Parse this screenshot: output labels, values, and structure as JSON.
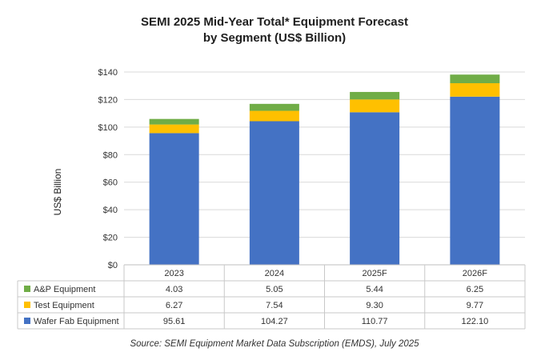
{
  "chart_data": {
    "type": "bar",
    "stacked": true,
    "title": "SEMI 2025 Mid-Year Total* Equipment Forecast",
    "subtitle": "by Segment (US$ Billion)",
    "ylabel": "US$ Billion",
    "xlabel": "",
    "categories": [
      "2023",
      "2024",
      "2025F",
      "2026F"
    ],
    "ylim": [
      0,
      140
    ],
    "yticks": [
      "$0",
      "$20",
      "$40",
      "$60",
      "$80",
      "$100",
      "$120",
      "$140"
    ],
    "ytick_values": [
      0,
      20,
      40,
      60,
      80,
      100,
      120,
      140
    ],
    "grid": true,
    "series": [
      {
        "name": "Wafer Fab Equipment",
        "values": [
          95.61,
          104.27,
          110.77,
          122.1
        ],
        "labels": [
          "95.61",
          "104.27",
          "110.77",
          "122.10"
        ],
        "color": "#4472C4"
      },
      {
        "name": "Test Equipment",
        "values": [
          6.27,
          7.54,
          9.3,
          9.77
        ],
        "labels": [
          "6.27",
          "7.54",
          "9.30",
          "9.77"
        ],
        "color": "#FFC000"
      },
      {
        "name": "A&P Equipment",
        "values": [
          4.03,
          5.05,
          5.44,
          6.25
        ],
        "labels": [
          "4.03",
          "5.05",
          "5.44",
          "6.25"
        ],
        "color": "#70AD47"
      }
    ],
    "table_row_order": [
      "A&P Equipment",
      "Test Equipment",
      "Wafer Fab Equipment"
    ],
    "source": "Source: SEMI Equipment Market Data Subscription (EMDS), July 2025"
  }
}
